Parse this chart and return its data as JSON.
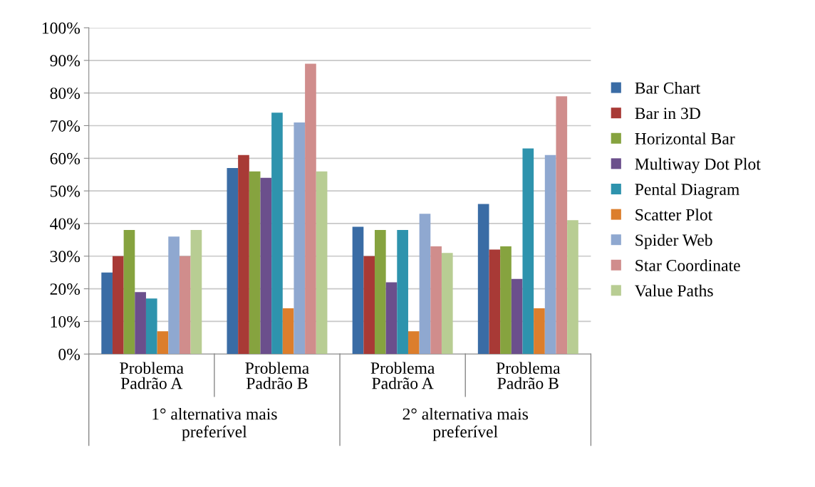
{
  "chart_data": {
    "type": "bar",
    "categories": [
      "Problema\nPadrão A",
      "Problema\nPadrão B",
      "Problema\nPadrão A",
      "Problema\nPadrão B"
    ],
    "series": [
      {
        "name": "Bar Chart",
        "color": "#3a6ca5",
        "values": [
          25,
          57,
          39,
          46
        ]
      },
      {
        "name": "Bar in 3D",
        "color": "#a83a36",
        "values": [
          30,
          61,
          30,
          32
        ]
      },
      {
        "name": "Horizontal Bar",
        "color": "#86a33f",
        "values": [
          38,
          56,
          38,
          33
        ]
      },
      {
        "name": "Multiway Dot Plot",
        "color": "#6b4f8c",
        "values": [
          19,
          54,
          22,
          23
        ]
      },
      {
        "name": "Pental Diagram",
        "color": "#2e93ad",
        "values": [
          17,
          74,
          38,
          63
        ]
      },
      {
        "name": "Scatter Plot",
        "color": "#dc7e2c",
        "values": [
          7,
          14,
          7,
          14
        ]
      },
      {
        "name": "Spider Web",
        "color": "#8fa8d0",
        "values": [
          36,
          71,
          43,
          61
        ]
      },
      {
        "name": "Star Coordinate",
        "color": "#d08d8c",
        "values": [
          30,
          89,
          33,
          79
        ]
      },
      {
        "name": "Value Paths",
        "color": "#b8cd93",
        "values": [
          38,
          56,
          31,
          41
        ]
      }
    ],
    "ylim": [
      0,
      100
    ],
    "yticks": [
      {
        "value": 0,
        "label": "0%"
      },
      {
        "value": 10,
        "label": "10%"
      },
      {
        "value": 20,
        "label": "20%"
      },
      {
        "value": 30,
        "label": "30%"
      },
      {
        "value": 40,
        "label": "40%"
      },
      {
        "value": 50,
        "label": "50%"
      },
      {
        "value": 60,
        "label": "60%"
      },
      {
        "value": 70,
        "label": "70%"
      },
      {
        "value": 80,
        "label": "80%"
      },
      {
        "value": 90,
        "label": "90%"
      },
      {
        "value": 100,
        "label": "100%"
      }
    ],
    "grid": "y",
    "legend": "right",
    "annotations": [
      "1° alternativa mais\npreferível",
      "2° alternativa mais\npreferível"
    ]
  }
}
